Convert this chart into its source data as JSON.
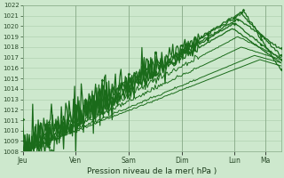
{
  "bg_color": "#cde8cd",
  "grid_color": "#aaccaa",
  "line_color": "#1a6b1a",
  "ylabel_min": 1008,
  "ylabel_max": 1022,
  "ytick_step": 1,
  "title": "Pression niveau de la mer( hPa )",
  "xtick_labels": [
    "Jeu",
    "Ven",
    "Sam",
    "Dim",
    "Lun",
    "Ma"
  ],
  "xtick_positions": [
    0,
    48,
    96,
    144,
    192,
    220
  ],
  "num_points": 235,
  "lines_params": [
    [
      1008.5,
      200,
      1021.5,
      1015.8,
      0.4,
      true
    ],
    [
      1008.3,
      198,
      1021.2,
      1017.2,
      0.35,
      true
    ],
    [
      1008.0,
      195,
      1020.7,
      1017.8,
      0.3,
      true
    ],
    [
      1008.2,
      192,
      1020.3,
      1016.8,
      0.25,
      true
    ],
    [
      1008.0,
      190,
      1019.8,
      1016.5,
      0.18,
      false
    ],
    [
      1008.1,
      195,
      1019.0,
      1017.0,
      0.12,
      false
    ],
    [
      1008.0,
      198,
      1018.0,
      1016.8,
      0.06,
      false
    ],
    [
      1008.0,
      210,
      1017.2,
      1016.5,
      0.03,
      false
    ],
    [
      1008.0,
      215,
      1016.8,
      1016.2,
      0.02,
      false
    ]
  ]
}
